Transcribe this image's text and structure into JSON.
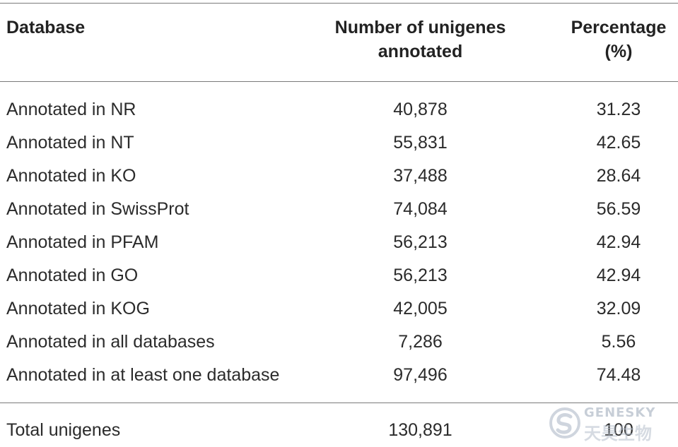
{
  "table": {
    "headers": {
      "database": "Database",
      "unigenes_line1": "Number of unigenes",
      "unigenes_line2": "annotated",
      "percentage_line1": "Percentage",
      "percentage_line2": "(%)"
    },
    "rows": [
      {
        "database": "Annotated in NR",
        "unigenes": "40,878",
        "percentage": "31.23"
      },
      {
        "database": "Annotated in NT",
        "unigenes": "55,831",
        "percentage": "42.65"
      },
      {
        "database": "Annotated in KO",
        "unigenes": "37,488",
        "percentage": "28.64"
      },
      {
        "database": "Annotated in SwissProt",
        "unigenes": "74,084",
        "percentage": "56.59"
      },
      {
        "database": "Annotated in PFAM",
        "unigenes": "56,213",
        "percentage": "42.94"
      },
      {
        "database": "Annotated in GO",
        "unigenes": "56,213",
        "percentage": "42.94"
      },
      {
        "database": "Annotated in KOG",
        "unigenes": "42,005",
        "percentage": "32.09"
      },
      {
        "database": "Annotated in all databases",
        "unigenes": "7,286",
        "percentage": "5.56"
      },
      {
        "database": "Annotated in at least one database",
        "unigenes": "97,496",
        "percentage": "74.48"
      }
    ],
    "total": {
      "database": "Total unigenes",
      "unigenes": "130,891",
      "percentage": "100"
    }
  },
  "watermark": {
    "brand_en": "GENESKY",
    "brand_cn": "天昊生物",
    "icon": "genesky-logo-icon"
  }
}
